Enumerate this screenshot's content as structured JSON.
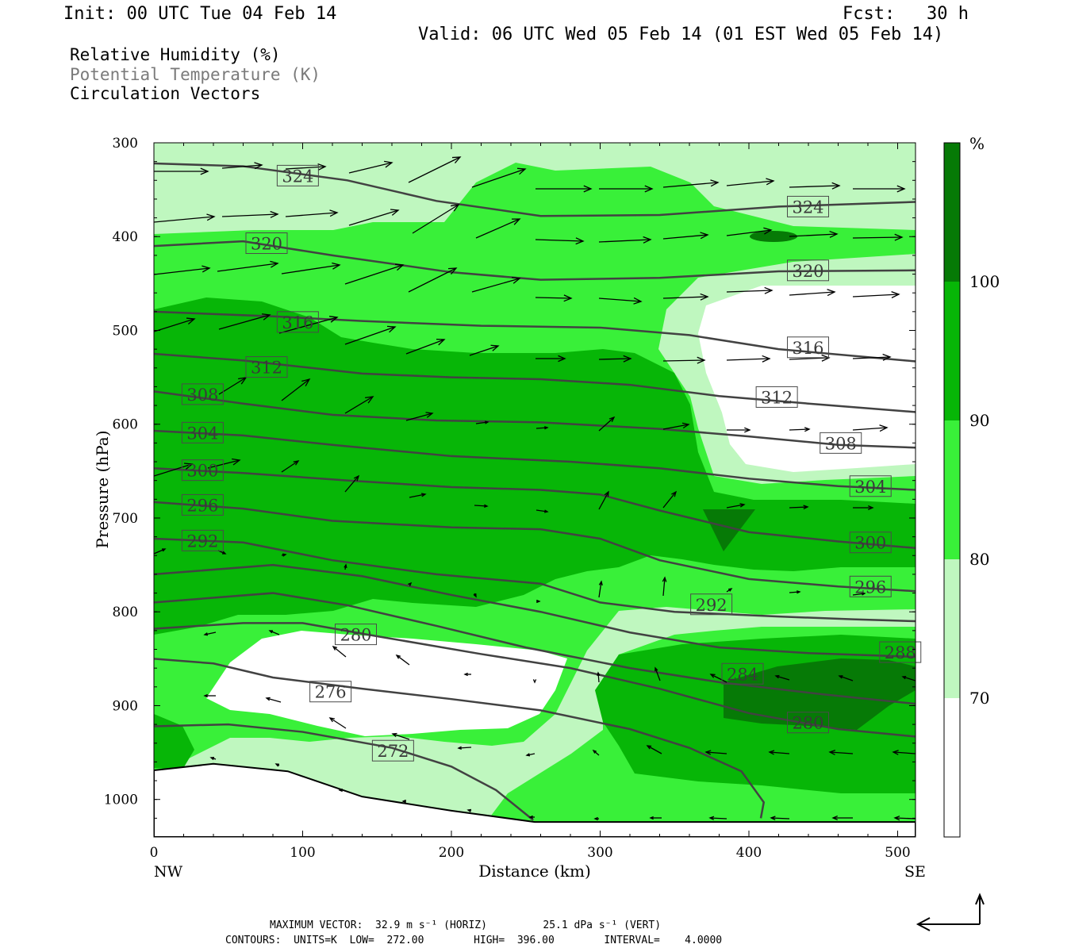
{
  "header": {
    "init": "Init: 00 UTC Tue 04 Feb 14",
    "fcst": "Fcst:   30 h",
    "valid": "Valid: 06 UTC Wed 05 Feb 14 (01 EST Wed 05 Feb 14)"
  },
  "legend": {
    "line1": "Relative Humidity (%)",
    "line2": "Potential Temperature (K)",
    "line3": "Circulation Vectors"
  },
  "footer": {
    "max_vector": "MAXIMUM VECTOR:  32.9 m s⁻¹ (HORIZ)         25.1 dPa s⁻¹ (VERT)",
    "contours": "CONTOURS:  UNITS=K  LOW=  272.00        HIGH=  396.00        INTERVAL=    4.0000"
  },
  "colors": {
    "rh_lt70": "#ffffff",
    "rh_70_80": "#bff7bf",
    "rh_80_90": "#39f039",
    "rh_90_100": "#07b607",
    "rh_ge100": "#067a06",
    "theta_line": "#424242",
    "vector": "#000000"
  },
  "chart_data": {
    "type": "cross-section",
    "xlabel": "Distance (km)",
    "ylabel": "Pressure (hPa)",
    "xlim": [
      0,
      512
    ],
    "ylim": [
      1040,
      300
    ],
    "x_ticks": [
      0,
      100,
      200,
      300,
      400,
      500
    ],
    "x_end_labels": [
      "NW",
      "SE"
    ],
    "y_ticks": [
      300,
      400,
      500,
      600,
      700,
      800,
      900,
      1000
    ],
    "colorbar": {
      "unit": "%",
      "levels": [
        70,
        80,
        90,
        100
      ]
    },
    "theta_contours": [
      {
        "value": 324,
        "label_pos": [
          85,
          335
        ],
        "points": [
          [
            0,
            322
          ],
          [
            60,
            325
          ],
          [
            130,
            340
          ],
          [
            190,
            362
          ],
          [
            260,
            378
          ],
          [
            340,
            377
          ],
          [
            420,
            368
          ],
          [
            512,
            363
          ]
        ]
      },
      {
        "value": 324,
        "label_pos": [
          428,
          368
        ],
        "points": []
      },
      {
        "value": 320,
        "label_pos": [
          64,
          407
        ],
        "points": [
          [
            0,
            410
          ],
          [
            60,
            405
          ],
          [
            120,
            420
          ],
          [
            200,
            438
          ],
          [
            260,
            446
          ],
          [
            340,
            444
          ],
          [
            420,
            437
          ],
          [
            512,
            436
          ]
        ]
      },
      {
        "value": 320,
        "label_pos": [
          428,
          436
        ],
        "points": []
      },
      {
        "value": 316,
        "label_pos": [
          85,
          491
        ],
        "points": [
          [
            0,
            480
          ],
          [
            80,
            485
          ],
          [
            140,
            490
          ],
          [
            220,
            495
          ],
          [
            300,
            497
          ],
          [
            360,
            505
          ],
          [
            420,
            520
          ],
          [
            512,
            533
          ]
        ]
      },
      {
        "value": 316,
        "label_pos": [
          428,
          518
        ],
        "points": []
      },
      {
        "value": 312,
        "label_pos": [
          64,
          539
        ],
        "points": [
          [
            0,
            525
          ],
          [
            60,
            532
          ],
          [
            140,
            546
          ],
          [
            200,
            550
          ],
          [
            260,
            552
          ],
          [
            320,
            558
          ],
          [
            380,
            570
          ],
          [
            440,
            578
          ],
          [
            512,
            587
          ]
        ]
      },
      {
        "value": 312,
        "label_pos": [
          407,
          571
        ],
        "points": []
      },
      {
        "value": 308,
        "label_pos": [
          21,
          568
        ],
        "points": [
          [
            0,
            565
          ],
          [
            60,
            578
          ],
          [
            120,
            590
          ],
          [
            190,
            596
          ],
          [
            260,
            598
          ],
          [
            340,
            605
          ],
          [
            400,
            613
          ],
          [
            460,
            622
          ],
          [
            512,
            625
          ]
        ]
      },
      {
        "value": 308,
        "label_pos": [
          450,
          620
        ],
        "points": []
      },
      {
        "value": 304,
        "label_pos": [
          21,
          609
        ],
        "points": [
          [
            0,
            607
          ],
          [
            60,
            612
          ],
          [
            120,
            622
          ],
          [
            200,
            634
          ],
          [
            280,
            640
          ],
          [
            340,
            647
          ],
          [
            400,
            658
          ],
          [
            460,
            666
          ],
          [
            512,
            670
          ]
        ]
      },
      {
        "value": 304,
        "label_pos": [
          470,
          666
        ],
        "points": []
      },
      {
        "value": 300,
        "label_pos": [
          21,
          649
        ],
        "points": [
          [
            0,
            647
          ],
          [
            60,
            652
          ],
          [
            130,
            660
          ],
          [
            200,
            667
          ],
          [
            260,
            670
          ],
          [
            300,
            675
          ],
          [
            340,
            692
          ],
          [
            400,
            715
          ],
          [
            460,
            725
          ],
          [
            512,
            732
          ]
        ]
      },
      {
        "value": 300,
        "label_pos": [
          470,
          726
        ],
        "points": []
      },
      {
        "value": 296,
        "label_pos": [
          21,
          686
        ],
        "points": [
          [
            0,
            683
          ],
          [
            60,
            690
          ],
          [
            120,
            703
          ],
          [
            200,
            710
          ],
          [
            260,
            712
          ],
          [
            300,
            722
          ],
          [
            340,
            745
          ],
          [
            400,
            765
          ],
          [
            460,
            773
          ],
          [
            512,
            778
          ]
        ]
      },
      {
        "value": 296,
        "label_pos": [
          470,
          773
        ],
        "points": []
      },
      {
        "value": 292,
        "label_pos": [
          21,
          724
        ],
        "points": [
          [
            0,
            722
          ],
          [
            60,
            726
          ],
          [
            120,
            745
          ],
          [
            190,
            760
          ],
          [
            260,
            770
          ],
          [
            300,
            790
          ],
          [
            350,
            800
          ],
          [
            420,
            805
          ],
          [
            470,
            808
          ],
          [
            512,
            810
          ]
        ]
      },
      {
        "value": 292,
        "label_pos": [
          363,
          792
        ],
        "points": []
      },
      {
        "value": 288,
        "label_pos": [
          490,
          843
        ],
        "points": [
          [
            0,
            760
          ],
          [
            80,
            750
          ],
          [
            140,
            762
          ],
          [
            200,
            782
          ],
          [
            260,
            800
          ],
          [
            320,
            822
          ],
          [
            380,
            838
          ],
          [
            440,
            844
          ],
          [
            512,
            848
          ]
        ]
      },
      {
        "value": 284,
        "label_pos": [
          384,
          866
        ],
        "points": [
          [
            0,
            790
          ],
          [
            80,
            780
          ],
          [
            130,
            793
          ],
          [
            190,
            815
          ],
          [
            250,
            838
          ],
          [
            320,
            860
          ],
          [
            380,
            875
          ],
          [
            450,
            888
          ],
          [
            512,
            898
          ]
        ]
      },
      {
        "value": 280,
        "label_pos": [
          124,
          824
        ],
        "points": [
          [
            0,
            818
          ],
          [
            60,
            812
          ],
          [
            100,
            812
          ],
          [
            150,
            826
          ],
          [
            220,
            845
          ],
          [
            280,
            860
          ],
          [
            340,
            882
          ],
          [
            400,
            908
          ],
          [
            460,
            925
          ],
          [
            512,
            933
          ]
        ]
      },
      {
        "value": 280,
        "label_pos": [
          428,
          918
        ],
        "points": []
      },
      {
        "value": 276,
        "label_pos": [
          107,
          885
        ],
        "points": [
          [
            0,
            850
          ],
          [
            40,
            855
          ],
          [
            80,
            870
          ],
          [
            140,
            882
          ],
          [
            200,
            893
          ],
          [
            260,
            905
          ],
          [
            320,
            925
          ],
          [
            360,
            945
          ],
          [
            395,
            970
          ],
          [
            410,
            1003
          ],
          [
            408,
            1020
          ]
        ]
      },
      {
        "value": 272,
        "label_pos": [
          149,
          948
        ],
        "points": [
          [
            0,
            922
          ],
          [
            50,
            920
          ],
          [
            100,
            928
          ],
          [
            160,
            945
          ],
          [
            200,
            965
          ],
          [
            230,
            990
          ],
          [
            255,
            1022
          ]
        ]
      }
    ],
    "terrain_top_hPa": [
      [
        0,
        969
      ],
      [
        40,
        962
      ],
      [
        90,
        970
      ],
      [
        140,
        997
      ],
      [
        200,
        1012
      ],
      [
        256,
        1024
      ],
      [
        512,
        1024
      ]
    ]
  }
}
